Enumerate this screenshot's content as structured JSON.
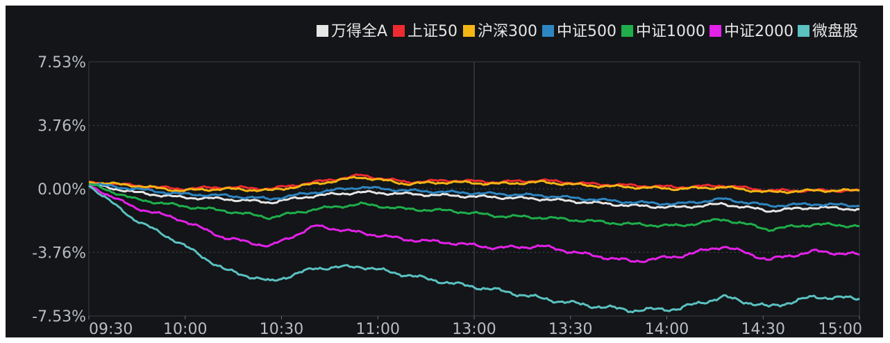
{
  "chart_data": {
    "type": "line",
    "title": "",
    "xlabel": "",
    "ylabel": "",
    "x_ticks": [
      "09:30",
      "10:00",
      "10:30",
      "11:00",
      "13:00",
      "13:30",
      "14:00",
      "14:30",
      "15:00"
    ],
    "y_ticks": [
      "7.53%",
      "3.76%",
      "0.00%",
      "-3.76%",
      "-7.53%"
    ],
    "y_tick_values": [
      7.53,
      3.76,
      0,
      -3.76,
      -7.53
    ],
    "ylim": [
      -7.53,
      7.53
    ],
    "y_unit": "%",
    "grid": true,
    "legend_position": "top-right",
    "x": [
      "09:30",
      "09:45",
      "10:00",
      "10:15",
      "10:30",
      "10:45",
      "11:00",
      "11:15",
      "11:30",
      "13:00",
      "13:15",
      "13:30",
      "13:45",
      "14:00",
      "14:15",
      "14:30",
      "14:45",
      "15:00"
    ],
    "series": [
      {
        "name": "万得全A",
        "color": "#e6e6e6",
        "values": [
          0.3,
          -0.2,
          -0.5,
          -0.6,
          -0.8,
          -0.4,
          -0.2,
          -0.3,
          -0.4,
          -0.5,
          -0.6,
          -0.8,
          -1.0,
          -1.1,
          -0.9,
          -1.3,
          -1.1,
          -1.2
        ]
      },
      {
        "name": "上证50",
        "color": "#ee2b30",
        "values": [
          0.4,
          0.2,
          0.0,
          0.1,
          0.0,
          0.4,
          0.8,
          0.4,
          0.5,
          0.4,
          0.5,
          0.3,
          0.2,
          0.1,
          0.2,
          -0.1,
          -0.1,
          -0.1
        ]
      },
      {
        "name": "沪深300",
        "color": "#f5b514",
        "values": [
          0.4,
          0.2,
          -0.1,
          0.0,
          -0.1,
          0.3,
          0.7,
          0.3,
          0.4,
          0.3,
          0.4,
          0.2,
          0.1,
          0.0,
          0.1,
          -0.2,
          -0.1,
          -0.1
        ]
      },
      {
        "name": "中证500",
        "color": "#2e86c1",
        "values": [
          0.3,
          0.0,
          -0.3,
          -0.4,
          -0.6,
          -0.2,
          0.1,
          -0.1,
          -0.2,
          -0.3,
          -0.4,
          -0.6,
          -0.8,
          -0.9,
          -0.6,
          -1.0,
          -0.9,
          -1.0
        ]
      },
      {
        "name": "中证1000",
        "color": "#1fae4b",
        "values": [
          0.3,
          -0.6,
          -1.0,
          -1.3,
          -1.7,
          -1.2,
          -0.9,
          -1.2,
          -1.3,
          -1.6,
          -1.7,
          -1.9,
          -2.1,
          -2.2,
          -1.8,
          -2.4,
          -2.1,
          -2.2
        ]
      },
      {
        "name": "中证2000",
        "color": "#e321e8",
        "values": [
          0.2,
          -1.1,
          -1.8,
          -2.9,
          -3.4,
          -2.2,
          -2.6,
          -3.0,
          -3.2,
          -3.5,
          -3.4,
          -3.9,
          -4.3,
          -4.0,
          -3.4,
          -4.2,
          -3.7,
          -3.9
        ]
      },
      {
        "name": "微盘股",
        "color": "#5bc1c1",
        "values": [
          0.2,
          -1.8,
          -3.2,
          -4.8,
          -5.5,
          -4.7,
          -4.6,
          -5.1,
          -5.6,
          -6.0,
          -6.5,
          -6.9,
          -7.2,
          -7.1,
          -6.4,
          -7.0,
          -6.4,
          -6.5
        ]
      }
    ]
  }
}
